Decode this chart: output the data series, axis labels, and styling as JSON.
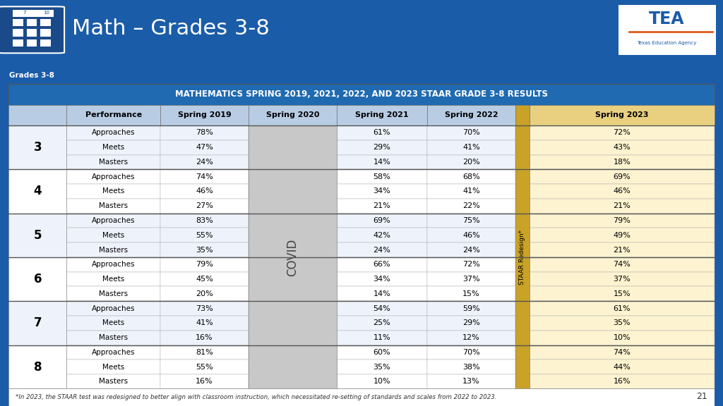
{
  "title": "Math – Grades 3-8",
  "table_title": "MATHEMATICS SPRING 2019, 2021, 2022, AND 2023 STAAR GRADE 3-8 RESULTS",
  "footnote": "*In 2023, the STAAR test was redesigned to better align with classroom instruction, which necessitated re-setting of standards and scales from 2022 to 2023.",
  "page_number": "21",
  "tab_label": "Grades 3-8",
  "grades": [
    "3",
    "4",
    "5",
    "6",
    "7",
    "8"
  ],
  "performance_labels": [
    "Approaches",
    "Meets",
    "Masters"
  ],
  "data": {
    "3": {
      "Approaches": {
        "2019": "78%",
        "2021": "61%",
        "2022": "70%",
        "2023": "72%"
      },
      "Meets": {
        "2019": "47%",
        "2021": "29%",
        "2022": "41%",
        "2023": "43%"
      },
      "Masters": {
        "2019": "24%",
        "2021": "14%",
        "2022": "20%",
        "2023": "18%"
      }
    },
    "4": {
      "Approaches": {
        "2019": "74%",
        "2021": "58%",
        "2022": "68%",
        "2023": "69%"
      },
      "Meets": {
        "2019": "46%",
        "2021": "34%",
        "2022": "41%",
        "2023": "46%"
      },
      "Masters": {
        "2019": "27%",
        "2021": "21%",
        "2022": "22%",
        "2023": "21%"
      }
    },
    "5": {
      "Approaches": {
        "2019": "83%",
        "2021": "69%",
        "2022": "75%",
        "2023": "79%"
      },
      "Meets": {
        "2019": "55%",
        "2021": "42%",
        "2022": "46%",
        "2023": "49%"
      },
      "Masters": {
        "2019": "35%",
        "2021": "24%",
        "2022": "24%",
        "2023": "21%"
      }
    },
    "6": {
      "Approaches": {
        "2019": "79%",
        "2021": "66%",
        "2022": "72%",
        "2023": "74%"
      },
      "Meets": {
        "2019": "45%",
        "2021": "34%",
        "2022": "37%",
        "2023": "37%"
      },
      "Masters": {
        "2019": "20%",
        "2021": "14%",
        "2022": "15%",
        "2023": "15%"
      }
    },
    "7": {
      "Approaches": {
        "2019": "73%",
        "2021": "54%",
        "2022": "59%",
        "2023": "61%"
      },
      "Meets": {
        "2019": "41%",
        "2021": "25%",
        "2022": "29%",
        "2023": "35%"
      },
      "Masters": {
        "2019": "16%",
        "2021": "11%",
        "2022": "12%",
        "2023": "10%"
      }
    },
    "8": {
      "Approaches": {
        "2019": "81%",
        "2021": "60%",
        "2022": "70%",
        "2023": "74%"
      },
      "Meets": {
        "2019": "55%",
        "2021": "35%",
        "2022": "38%",
        "2023": "44%"
      },
      "Masters": {
        "2019": "16%",
        "2021": "10%",
        "2022": "13%",
        "2023": "16%"
      }
    }
  },
  "colors": {
    "header_bg": "#1a5ca8",
    "col_header_bg": "#b8cce4",
    "staar_bg": "#c9a227",
    "covid_bg": "#c8c8c8",
    "orange_stripe": "#e05a1e",
    "table_title_bg": "#1f6ab0",
    "table_title_text": "#ffffff",
    "row_even": "#eef3fb",
    "row_odd": "#ffffff",
    "spring2023_bg": "#fdf3d0",
    "spring2023_hdr": "#e8d080",
    "border_dark": "#555555",
    "border_light": "#aaaaaa"
  }
}
